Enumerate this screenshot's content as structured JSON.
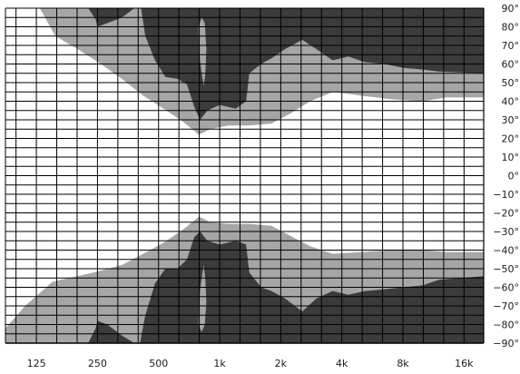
{
  "chart_data": {
    "type": "heatmap",
    "title": "",
    "xlabel": "",
    "ylabel": "",
    "x_scale": "log",
    "xlim": [
      88,
      20000
    ],
    "ylim": [
      -90,
      90
    ],
    "grid": true,
    "x_tick_values": [
      125,
      250,
      500,
      1000,
      2000,
      4000,
      8000,
      16000
    ],
    "x_tick_labels": [
      "125",
      "250",
      "500",
      "1k",
      "2k",
      "4k",
      "8k",
      "16k"
    ],
    "y_tick_values": [
      90,
      80,
      70,
      60,
      50,
      40,
      30,
      20,
      10,
      0,
      -10,
      -20,
      -30,
      -40,
      -50,
      -60,
      -70,
      -80,
      -90
    ],
    "y_tick_labels": [
      "90°",
      "80°",
      "70°",
      "60°",
      "50°",
      "40°",
      "30°",
      "20°",
      "10°",
      "0°",
      "−10°",
      "−20°",
      "−30°",
      "−40°",
      "−50°",
      "−60°",
      "−70°",
      "−80°",
      "−90°"
    ],
    "colors": {
      "background": "#ffffff",
      "light_region": "#a6a6a6",
      "dark_region": "#3b3b3b",
      "grid": "#000000"
    },
    "regions": [
      {
        "level": "light",
        "boundary": [
          [
            88,
            90
          ],
          [
            130,
            90
          ],
          [
            155,
            75
          ],
          [
            200,
            68
          ],
          [
            260,
            60
          ],
          [
            330,
            52
          ],
          [
            420,
            43
          ],
          [
            530,
            36
          ],
          [
            660,
            29
          ],
          [
            790,
            22
          ],
          [
            900,
            25
          ],
          [
            1100,
            27
          ],
          [
            1400,
            27
          ],
          [
            1800,
            28
          ],
          [
            2200,
            33
          ],
          [
            2800,
            40
          ],
          [
            3600,
            45
          ],
          [
            5000,
            43
          ],
          [
            7000,
            41
          ],
          [
            10000,
            40
          ],
          [
            13000,
            42
          ],
          [
            20000,
            42
          ],
          [
            20000,
            90
          ]
        ]
      },
      {
        "level": "dark",
        "boundary": [
          [
            225,
            90
          ],
          [
            245,
            84
          ],
          [
            250,
            80
          ],
          [
            280,
            82
          ],
          [
            330,
            85
          ],
          [
            380,
            90
          ]
        ]
      },
      {
        "level": "dark",
        "boundary": [
          [
            410,
            90
          ],
          [
            430,
            75
          ],
          [
            480,
            62
          ],
          [
            540,
            53
          ],
          [
            620,
            52
          ],
          [
            690,
            49
          ],
          [
            750,
            37
          ],
          [
            800,
            30
          ],
          [
            870,
            35
          ],
          [
            1000,
            38
          ],
          [
            1200,
            36
          ],
          [
            1350,
            40
          ],
          [
            1400,
            55
          ],
          [
            1600,
            60
          ],
          [
            1800,
            63
          ],
          [
            2100,
            68
          ],
          [
            2550,
            73
          ],
          [
            3000,
            68
          ],
          [
            3600,
            62
          ],
          [
            4300,
            64
          ],
          [
            5200,
            61
          ],
          [
            6500,
            60
          ],
          [
            8000,
            58
          ],
          [
            10000,
            57
          ],
          [
            12000,
            56
          ],
          [
            20000,
            55
          ],
          [
            20000,
            90
          ]
        ]
      },
      {
        "level": "light",
        "boundary": [
          [
            88,
            -90
          ],
          [
            88,
            -82
          ],
          [
            110,
            -70
          ],
          [
            150,
            -57
          ],
          [
            240,
            -52
          ],
          [
            330,
            -48
          ],
          [
            420,
            -42
          ],
          [
            530,
            -36
          ],
          [
            660,
            -29
          ],
          [
            790,
            -22
          ],
          [
            900,
            -25
          ],
          [
            1100,
            -26
          ],
          [
            1400,
            -26
          ],
          [
            1800,
            -27
          ],
          [
            2200,
            -32
          ],
          [
            2800,
            -38
          ],
          [
            3600,
            -42
          ],
          [
            5000,
            -41
          ],
          [
            7000,
            -40
          ],
          [
            10000,
            -40
          ],
          [
            13000,
            -41
          ],
          [
            20000,
            -41
          ],
          [
            20000,
            -90
          ]
        ]
      },
      {
        "level": "dark",
        "boundary": [
          [
            225,
            -90
          ],
          [
            245,
            -82
          ],
          [
            250,
            -78
          ],
          [
            280,
            -80
          ],
          [
            330,
            -86
          ],
          [
            380,
            -90
          ]
        ]
      },
      {
        "level": "dark",
        "boundary": [
          [
            405,
            -90
          ],
          [
            430,
            -75
          ],
          [
            480,
            -58
          ],
          [
            540,
            -50
          ],
          [
            620,
            -50
          ],
          [
            690,
            -45
          ],
          [
            750,
            -33
          ],
          [
            800,
            -30
          ],
          [
            870,
            -35
          ],
          [
            1000,
            -37
          ],
          [
            1200,
            -35
          ],
          [
            1350,
            -37
          ],
          [
            1400,
            -52
          ],
          [
            1600,
            -60
          ],
          [
            1800,
            -62
          ],
          [
            2100,
            -66
          ],
          [
            2550,
            -73
          ],
          [
            3000,
            -66
          ],
          [
            3600,
            -62
          ],
          [
            4300,
            -64
          ],
          [
            5200,
            -62
          ],
          [
            6500,
            -61
          ],
          [
            8000,
            -60
          ],
          [
            10000,
            -59
          ],
          [
            12000,
            -56
          ],
          [
            20000,
            -54
          ],
          [
            20000,
            -90
          ]
        ]
      },
      {
        "level": "light",
        "boundary": [
          [
            785,
            80
          ],
          [
            790,
            70
          ],
          [
            800,
            62
          ],
          [
            815,
            55
          ],
          [
            835,
            48
          ],
          [
            850,
            55
          ],
          [
            860,
            68
          ],
          [
            845,
            82
          ],
          [
            815,
            85
          ]
        ]
      },
      {
        "level": "light",
        "boundary": [
          [
            785,
            -80
          ],
          [
            790,
            -70
          ],
          [
            800,
            -62
          ],
          [
            815,
            -55
          ],
          [
            835,
            -48
          ],
          [
            850,
            -56
          ],
          [
            860,
            -68
          ],
          [
            845,
            -80
          ],
          [
            815,
            -84
          ]
        ]
      }
    ]
  }
}
